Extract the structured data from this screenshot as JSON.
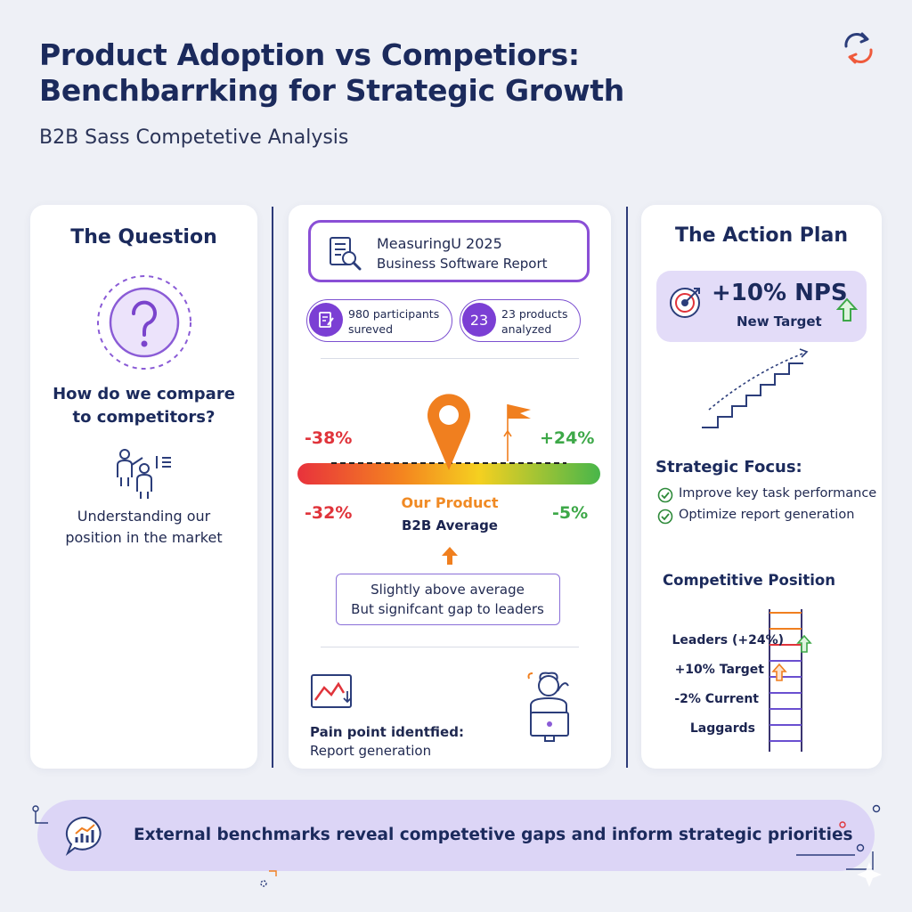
{
  "header": {
    "title_line1": "Product Adoption vs Competiors:",
    "title_line2": "Benchbarrking for Strategic Growth",
    "subtitle": "B2B Sass Competetive Analysis"
  },
  "question": {
    "title": "The Question",
    "text_line1": "How do we compare",
    "text_line2": "to competitors?",
    "desc_line1": "Understanding our",
    "desc_line2": "position in the market"
  },
  "report": {
    "line1": "MeasuringU 2025",
    "line2": "Business Software Report",
    "stats": [
      {
        "badge": "",
        "line1": "980 participants",
        "line2": "sureved"
      },
      {
        "badge": "23",
        "line1": "23 products",
        "line2": "analyzed"
      }
    ],
    "gauge": {
      "top_left": "-38%",
      "top_right": "+24%",
      "bottom_left": "-32%",
      "bottom_right": "-5%",
      "our_product": "Our Product",
      "b2b_average": "B2B Average",
      "colors": {
        "red": "#e8323c",
        "orange": "#f4861f",
        "yellow": "#f5d020",
        "green": "#48b64a"
      }
    },
    "note_line1": "Slightly above average",
    "note_line2": "But signifcant gap to leaders",
    "pain_line1": "Pain point identfied:",
    "pain_line2": "Report generation"
  },
  "plan": {
    "title": "The Action Plan",
    "nps_value": "+10% NPS",
    "nps_label": "New Target",
    "focus_heading": "Strategic Focus:",
    "focus_items": [
      "Improve key task performance",
      "Optimize report generation"
    ],
    "position_heading": "Competitive Position",
    "ladder": [
      "Leaders (+24%)",
      "+10% Target",
      "-2% Current",
      "Laggards"
    ]
  },
  "footer": {
    "text": "External benchmarks reveal competetive gaps and inform strategic priorities"
  }
}
